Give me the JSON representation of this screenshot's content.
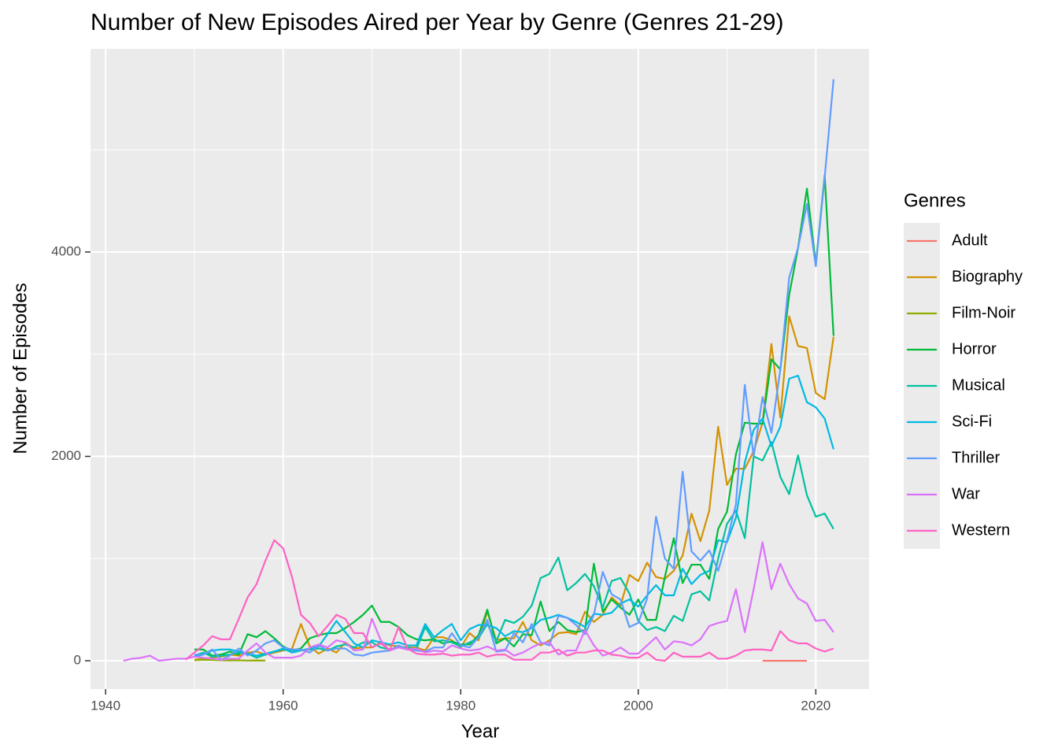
{
  "chart_data": {
    "type": "line",
    "title": "Number of New Episodes Aired per Year by Genre (Genres 21-29)",
    "x_label": "Year",
    "y_label": "Number of Episodes",
    "legend_title": "Genres",
    "legend_position": "right",
    "grid": true,
    "xlim": [
      1938.3,
      2026.0
    ],
    "xticks": [
      1940,
      1960,
      1980,
      2000,
      2020
    ],
    "x_minor_ticks": [
      1950,
      1970,
      1990,
      2010
    ],
    "ylim": [
      -277,
      5988
    ],
    "yticks": [
      0,
      2000,
      4000
    ],
    "y_minor_ticks": [
      1000,
      3000,
      5000
    ],
    "series": [
      {
        "name": "Adult",
        "color": "#F8766D",
        "x": [
          2014,
          2015,
          2016,
          2017,
          2018,
          2019
        ],
        "values": [
          0,
          0,
          0,
          0,
          0,
          0
        ]
      },
      {
        "name": "Biography",
        "color": "#D39200",
        "x": [
          1950,
          1951,
          1952,
          1953,
          1954,
          1955,
          1956,
          1957,
          1958,
          1959,
          1960,
          1961,
          1962,
          1963,
          1964,
          1965,
          1966,
          1967,
          1968,
          1969,
          1970,
          1971,
          1972,
          1973,
          1974,
          1975,
          1976,
          1977,
          1978,
          1979,
          1980,
          1981,
          1982,
          1983,
          1984,
          1985,
          1986,
          1987,
          1988,
          1989,
          1990,
          1991,
          1992,
          1993,
          1994,
          1995,
          1996,
          1997,
          1998,
          1999,
          2000,
          2001,
          2002,
          2003,
          2004,
          2005,
          2006,
          2007,
          2008,
          2009,
          2010,
          2011,
          2012,
          2013,
          2014,
          2015,
          2016,
          2017,
          2018,
          2019,
          2020,
          2021,
          2022
        ],
        "values": [
          10,
          20,
          30,
          40,
          60,
          50,
          80,
          90,
          60,
          80,
          100,
          120,
          360,
          140,
          70,
          120,
          80,
          180,
          120,
          130,
          130,
          180,
          150,
          140,
          130,
          130,
          100,
          230,
          230,
          200,
          130,
          270,
          200,
          480,
          200,
          220,
          220,
          380,
          200,
          150,
          200,
          270,
          280,
          260,
          480,
          380,
          450,
          620,
          540,
          840,
          780,
          960,
          820,
          800,
          880,
          1030,
          1440,
          1170,
          1470,
          2290,
          1720,
          1880,
          1880,
          2050,
          2330,
          3100,
          2380,
          3370,
          3080,
          3060,
          2620,
          2560,
          3170
        ]
      },
      {
        "name": "Film-Noir",
        "color": "#93AA00",
        "x": [
          1950,
          1951,
          1952,
          1953,
          1954,
          1955,
          1956,
          1957,
          1958
        ],
        "values": [
          5,
          10,
          8,
          5,
          3,
          5,
          2,
          3,
          2
        ]
      },
      {
        "name": "Horror",
        "color": "#00BA38",
        "x": [
          1950,
          1951,
          1952,
          1953,
          1954,
          1955,
          1956,
          1957,
          1958,
          1959,
          1960,
          1961,
          1962,
          1963,
          1964,
          1965,
          1966,
          1967,
          1968,
          1969,
          1970,
          1971,
          1972,
          1973,
          1974,
          1975,
          1976,
          1977,
          1978,
          1979,
          1980,
          1981,
          1982,
          1983,
          1984,
          1985,
          1986,
          1987,
          1988,
          1989,
          1990,
          1991,
          1992,
          1993,
          1994,
          1995,
          1996,
          1997,
          1998,
          1999,
          2000,
          2001,
          2002,
          2003,
          2004,
          2005,
          2006,
          2007,
          2008,
          2009,
          2010,
          2011,
          2012,
          2013,
          2014,
          2015,
          2016,
          2017,
          2018,
          2019,
          2020,
          2021,
          2022
        ],
        "values": [
          110,
          110,
          50,
          60,
          90,
          60,
          260,
          230,
          290,
          220,
          140,
          100,
          120,
          220,
          250,
          270,
          270,
          320,
          380,
          450,
          540,
          380,
          380,
          330,
          250,
          210,
          200,
          210,
          170,
          190,
          160,
          160,
          250,
          500,
          170,
          220,
          140,
          260,
          250,
          580,
          290,
          380,
          300,
          280,
          300,
          950,
          480,
          600,
          520,
          450,
          600,
          400,
          400,
          820,
          1200,
          760,
          940,
          940,
          800,
          1290,
          1460,
          2020,
          2330,
          2320,
          2320,
          2950,
          2850,
          3580,
          4040,
          4620,
          3880,
          4750,
          3180
        ]
      },
      {
        "name": "Musical",
        "color": "#00C19F",
        "x": [
          1950,
          1951,
          1952,
          1953,
          1954,
          1955,
          1956,
          1957,
          1958,
          1959,
          1960,
          1961,
          1962,
          1963,
          1964,
          1965,
          1966,
          1967,
          1968,
          1969,
          1970,
          1971,
          1972,
          1973,
          1974,
          1975,
          1976,
          1977,
          1978,
          1979,
          1980,
          1981,
          1982,
          1983,
          1984,
          1985,
          1986,
          1987,
          1988,
          1989,
          1990,
          1991,
          1992,
          1993,
          1994,
          1995,
          1996,
          1997,
          1998,
          1999,
          2000,
          2001,
          2002,
          2003,
          2004,
          2005,
          2006,
          2007,
          2008,
          2009,
          2010,
          2011,
          2012,
          2013,
          2014,
          2015,
          2016,
          2017,
          2018,
          2019,
          2020,
          2021,
          2022
        ],
        "values": [
          50,
          80,
          40,
          50,
          60,
          80,
          70,
          30,
          60,
          90,
          110,
          100,
          100,
          110,
          120,
          100,
          140,
          160,
          130,
          180,
          180,
          130,
          110,
          130,
          130,
          110,
          330,
          190,
          200,
          180,
          140,
          180,
          220,
          360,
          190,
          400,
          370,
          430,
          540,
          810,
          850,
          1010,
          690,
          760,
          850,
          730,
          520,
          780,
          810,
          660,
          390,
          300,
          330,
          290,
          440,
          390,
          650,
          680,
          590,
          1000,
          1340,
          1470,
          1200,
          2000,
          1960,
          2140,
          1800,
          1630,
          2010,
          1620,
          1410,
          1440,
          1290
        ]
      },
      {
        "name": "Sci-Fi",
        "color": "#00B9E3",
        "x": [
          1950,
          1951,
          1952,
          1953,
          1954,
          1955,
          1956,
          1957,
          1958,
          1959,
          1960,
          1961,
          1962,
          1963,
          1964,
          1965,
          1966,
          1967,
          1968,
          1969,
          1970,
          1971,
          1972,
          1973,
          1974,
          1975,
          1976,
          1977,
          1978,
          1979,
          1980,
          1981,
          1982,
          1983,
          1984,
          1985,
          1986,
          1987,
          1988,
          1989,
          1990,
          1991,
          1992,
          1993,
          1994,
          1995,
          1996,
          1997,
          1998,
          1999,
          2000,
          2001,
          2002,
          2003,
          2004,
          2005,
          2006,
          2007,
          2008,
          2009,
          2010,
          2011,
          2012,
          2013,
          2014,
          2015,
          2016,
          2017,
          2018,
          2019,
          2020,
          2021,
          2022
        ],
        "values": [
          40,
          60,
          100,
          110,
          110,
          90,
          70,
          50,
          70,
          90,
          120,
          80,
          100,
          120,
          140,
          260,
          390,
          280,
          170,
          130,
          200,
          180,
          160,
          180,
          150,
          150,
          360,
          230,
          300,
          360,
          200,
          310,
          350,
          350,
          320,
          240,
          290,
          280,
          320,
          400,
          420,
          450,
          420,
          380,
          330,
          460,
          450,
          470,
          560,
          600,
          530,
          640,
          740,
          640,
          640,
          900,
          750,
          840,
          880,
          1180,
          1160,
          1400,
          1940,
          2260,
          2370,
          2100,
          2290,
          2760,
          2790,
          2530,
          2480,
          2370,
          2070
        ]
      },
      {
        "name": "Thriller",
        "color": "#619CFF",
        "x": [
          1950,
          1951,
          1952,
          1953,
          1954,
          1955,
          1956,
          1957,
          1958,
          1959,
          1960,
          1961,
          1962,
          1963,
          1964,
          1965,
          1966,
          1967,
          1968,
          1969,
          1970,
          1971,
          1972,
          1973,
          1974,
          1975,
          1976,
          1977,
          1978,
          1979,
          1980,
          1981,
          1982,
          1983,
          1984,
          1985,
          1986,
          1987,
          1988,
          1989,
          1990,
          1991,
          1992,
          1993,
          1994,
          1995,
          1996,
          1997,
          1998,
          1999,
          2000,
          2001,
          2002,
          2003,
          2004,
          2005,
          2006,
          2007,
          2008,
          2009,
          2010,
          2011,
          2012,
          2013,
          2014,
          2015,
          2016,
          2017,
          2018,
          2019,
          2020,
          2021,
          2022
        ],
        "values": [
          60,
          60,
          110,
          10,
          50,
          120,
          50,
          100,
          170,
          200,
          130,
          110,
          110,
          80,
          150,
          100,
          120,
          120,
          60,
          50,
          80,
          90,
          100,
          150,
          110,
          100,
          90,
          130,
          130,
          270,
          150,
          130,
          230,
          400,
          90,
          100,
          270,
          180,
          360,
          180,
          150,
          440,
          420,
          350,
          260,
          450,
          870,
          650,
          600,
          330,
          370,
          610,
          1410,
          1000,
          900,
          1850,
          1070,
          980,
          1080,
          880,
          1180,
          1530,
          2700,
          2000,
          2580,
          2230,
          2850,
          3750,
          4040,
          4470,
          3860,
          4730,
          5690
        ]
      },
      {
        "name": "War",
        "color": "#DB72FB",
        "x": [
          1942,
          1943,
          1944,
          1945,
          1946,
          1947,
          1948,
          1949,
          1950,
          1951,
          1952,
          1953,
          1954,
          1955,
          1956,
          1957,
          1958,
          1959,
          1960,
          1961,
          1962,
          1963,
          1964,
          1965,
          1966,
          1967,
          1968,
          1969,
          1970,
          1971,
          1972,
          1973,
          1974,
          1975,
          1976,
          1977,
          1978,
          1979,
          1980,
          1981,
          1982,
          1983,
          1984,
          1985,
          1986,
          1987,
          1988,
          1989,
          1990,
          1991,
          1992,
          1993,
          1994,
          1995,
          1996,
          1997,
          1998,
          1999,
          2000,
          2001,
          2002,
          2003,
          2004,
          2005,
          2006,
          2007,
          2008,
          2009,
          2010,
          2011,
          2012,
          2013,
          2014,
          2015,
          2016,
          2017,
          2018,
          2019,
          2020,
          2021,
          2022
        ],
        "values": [
          0,
          20,
          30,
          50,
          0,
          10,
          20,
          20,
          40,
          30,
          20,
          10,
          20,
          20,
          100,
          170,
          80,
          30,
          30,
          30,
          50,
          130,
          160,
          130,
          200,
          180,
          100,
          110,
          410,
          200,
          100,
          130,
          110,
          120,
          80,
          100,
          90,
          150,
          120,
          100,
          110,
          140,
          100,
          110,
          50,
          80,
          130,
          170,
          180,
          60,
          100,
          100,
          300,
          150,
          50,
          80,
          130,
          70,
          70,
          150,
          230,
          110,
          190,
          180,
          150,
          210,
          340,
          370,
          390,
          700,
          280,
          700,
          1160,
          700,
          950,
          750,
          610,
          560,
          390,
          400,
          280
        ]
      },
      {
        "name": "Western",
        "color": "#FF61C3",
        "x": [
          1949,
          1950,
          1951,
          1952,
          1953,
          1954,
          1955,
          1956,
          1957,
          1958,
          1959,
          1960,
          1961,
          1962,
          1963,
          1964,
          1965,
          1966,
          1967,
          1968,
          1969,
          1970,
          1971,
          1972,
          1973,
          1974,
          1975,
          1976,
          1977,
          1978,
          1979,
          1980,
          1981,
          1982,
          1983,
          1984,
          1985,
          1986,
          1987,
          1988,
          1989,
          1990,
          1991,
          1992,
          1993,
          1994,
          1995,
          1996,
          1997,
          1998,
          1999,
          2000,
          2001,
          2002,
          2003,
          2004,
          2005,
          2006,
          2007,
          2008,
          2009,
          2010,
          2011,
          2012,
          2013,
          2014,
          2015,
          2016,
          2017,
          2018,
          2019,
          2020,
          2021,
          2022
        ],
        "values": [
          10,
          80,
          150,
          240,
          210,
          210,
          410,
          620,
          750,
          980,
          1180,
          1100,
          820,
          450,
          370,
          240,
          340,
          450,
          410,
          270,
          270,
          130,
          170,
          100,
          330,
          120,
          70,
          60,
          60,
          70,
          50,
          60,
          60,
          80,
          40,
          60,
          60,
          10,
          10,
          10,
          80,
          80,
          110,
          50,
          80,
          80,
          100,
          100,
          60,
          50,
          30,
          30,
          80,
          10,
          0,
          80,
          40,
          40,
          40,
          80,
          20,
          20,
          50,
          100,
          110,
          110,
          100,
          290,
          200,
          170,
          170,
          120,
          90,
          120
        ]
      }
    ]
  }
}
